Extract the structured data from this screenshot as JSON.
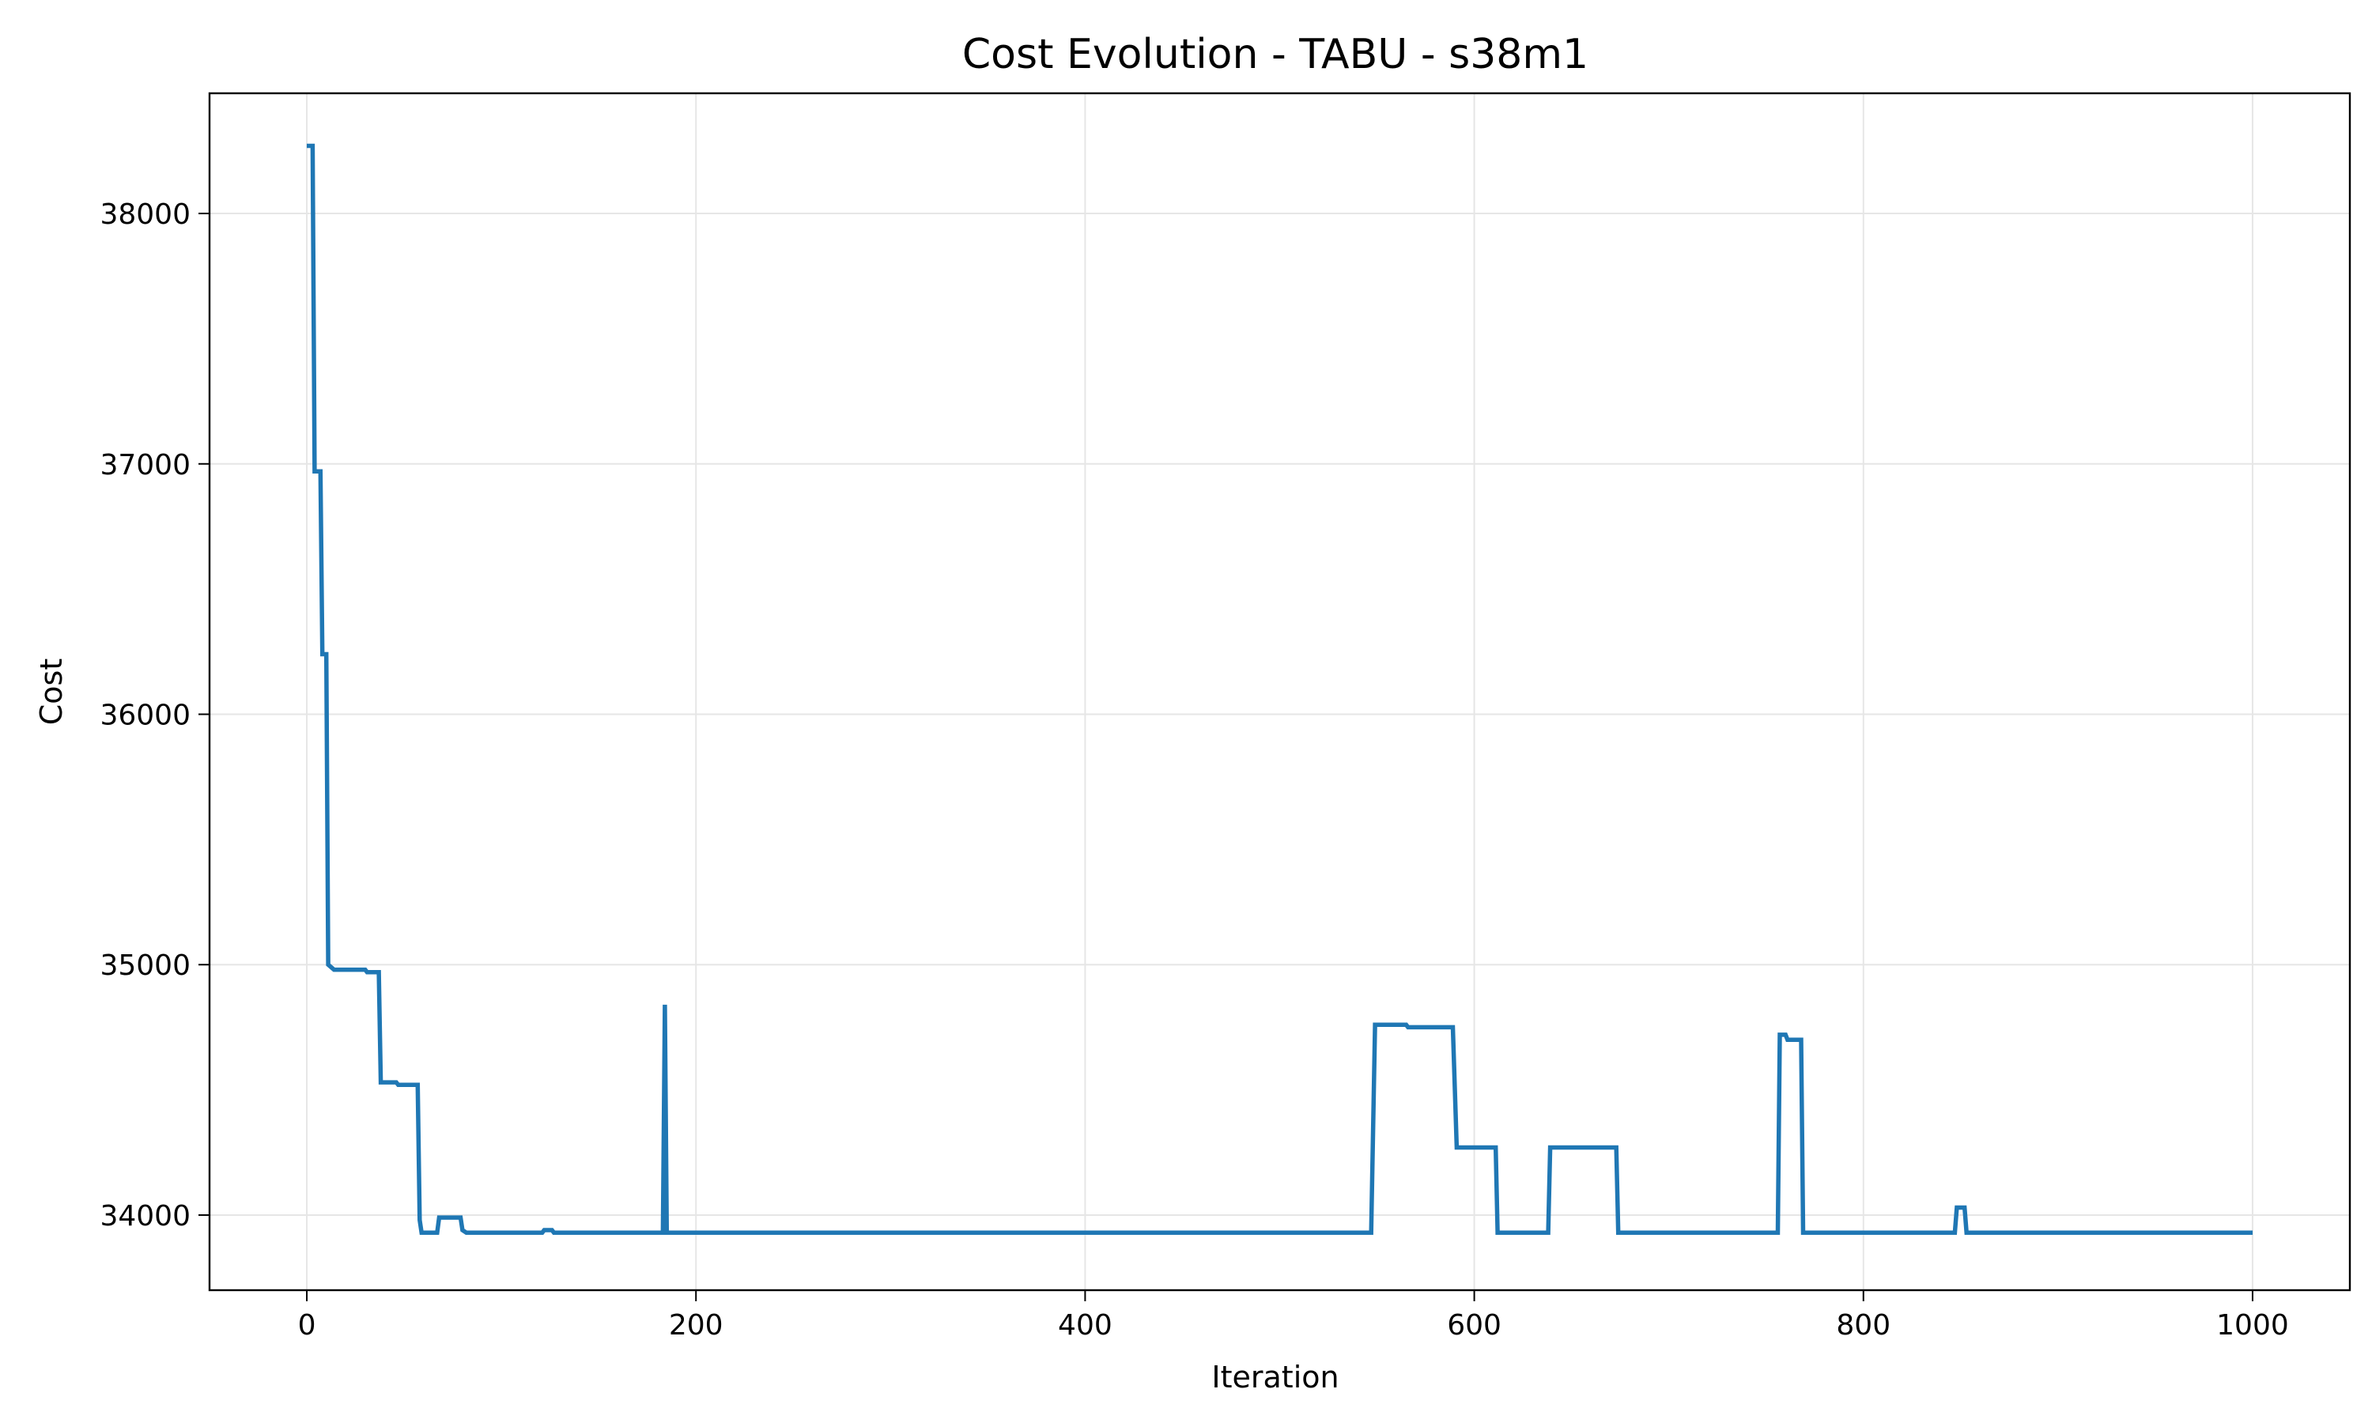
{
  "chart_data": {
    "type": "line",
    "title": "Cost Evolution - TABU - s38m1",
    "xlabel": "Iteration",
    "ylabel": "Cost",
    "xlim": [
      -50,
      1050
    ],
    "ylim": [
      33700,
      38480
    ],
    "xticks": [
      0,
      200,
      400,
      600,
      800,
      1000
    ],
    "yticks": [
      34000,
      35000,
      36000,
      37000,
      38000
    ],
    "grid": true,
    "series_color": "#1f77b4",
    "series": [
      {
        "x": [
          0,
          3,
          4,
          7,
          8,
          10,
          11,
          14,
          30,
          31,
          37,
          38,
          46,
          47,
          57,
          58,
          59,
          61,
          67,
          68,
          70,
          79,
          80,
          82,
          121,
          122,
          126,
          127,
          183,
          184,
          185,
          186,
          547,
          549,
          565,
          566,
          589,
          591,
          611,
          612,
          638,
          639,
          673,
          674,
          756,
          757,
          760,
          761,
          768,
          769,
          847,
          848,
          852,
          853,
          1000
        ],
        "y": [
          38270,
          38270,
          36970,
          36970,
          36240,
          36240,
          35000,
          34980,
          34980,
          34970,
          34970,
          34530,
          34530,
          34520,
          34520,
          33980,
          33930,
          33930,
          33930,
          33990,
          33990,
          33990,
          33940,
          33930,
          33930,
          33940,
          33940,
          33930,
          33930,
          34840,
          33930,
          33930,
          33930,
          34760,
          34760,
          34750,
          34750,
          34270,
          34270,
          33930,
          33930,
          34270,
          34270,
          33930,
          33930,
          34720,
          34720,
          34700,
          34700,
          33930,
          33930,
          34030,
          34030,
          33930,
          33930
        ]
      }
    ]
  }
}
